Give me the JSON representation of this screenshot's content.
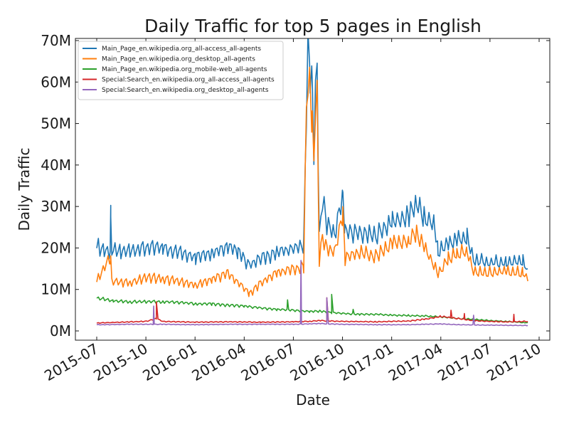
{
  "chart_data": {
    "type": "line",
    "title": "Daily Traffic for top 5 pages in English",
    "xlabel": "Date",
    "ylabel": "Daily Traffic",
    "xlim": [
      "2015-07-01",
      "2017-10-01"
    ],
    "ylim": [
      0,
      70000000
    ],
    "x_ticks": [
      "2015-07",
      "2015-10",
      "2016-01",
      "2016-04",
      "2016-07",
      "2016-10",
      "2017-01",
      "2017-04",
      "2017-07",
      "2017-10"
    ],
    "y_ticks": [
      "0M",
      "10M",
      "20M",
      "30M",
      "40M",
      "50M",
      "60M",
      "70M"
    ],
    "grid": false,
    "legend_position": "top-left",
    "series": [
      {
        "name": "Main_Page_en.wikipedia.org_all-access_all-agents",
        "color": "#1f77b4",
        "points": [
          [
            "2015-07-01",
            20500000
          ],
          [
            "2015-07-15",
            19500000
          ],
          [
            "2015-07-26",
            19000000
          ],
          [
            "2015-07-27",
            27500000
          ],
          [
            "2015-07-29",
            19500000
          ],
          [
            "2015-08-15",
            19000000
          ],
          [
            "2015-09-01",
            19500000
          ],
          [
            "2015-10-01",
            20000000
          ],
          [
            "2015-11-01",
            20000000
          ],
          [
            "2015-12-01",
            19000000
          ],
          [
            "2016-01-01",
            18000000
          ],
          [
            "2016-02-01",
            19000000
          ],
          [
            "2016-03-01",
            20500000
          ],
          [
            "2016-03-20",
            19000000
          ],
          [
            "2016-04-10",
            16000000
          ],
          [
            "2016-05-01",
            17500000
          ],
          [
            "2016-06-01",
            19000000
          ],
          [
            "2016-07-01",
            20000000
          ],
          [
            "2016-07-20",
            20500000
          ],
          [
            "2016-07-25",
            53000000
          ],
          [
            "2016-07-28",
            67000000
          ],
          [
            "2016-08-01",
            63000000
          ],
          [
            "2016-08-05",
            58000000
          ],
          [
            "2016-08-08",
            43000000
          ],
          [
            "2016-08-11",
            58000000
          ],
          [
            "2016-08-14",
            62500000
          ],
          [
            "2016-08-16",
            42000000
          ],
          [
            "2016-08-18",
            22000000
          ],
          [
            "2016-08-24",
            32000000
          ],
          [
            "2016-09-01",
            26000000
          ],
          [
            "2016-09-15",
            23000000
          ],
          [
            "2016-10-01",
            33000000
          ],
          [
            "2016-10-05",
            24000000
          ],
          [
            "2016-11-01",
            23500000
          ],
          [
            "2016-12-01",
            23000000
          ],
          [
            "2017-01-01",
            26500000
          ],
          [
            "2017-02-01",
            27500000
          ],
          [
            "2017-02-15",
            31000000
          ],
          [
            "2017-03-01",
            27000000
          ],
          [
            "2017-03-20",
            26000000
          ],
          [
            "2017-03-27",
            19000000
          ],
          [
            "2017-04-15",
            21000000
          ],
          [
            "2017-05-01",
            22000000
          ],
          [
            "2017-05-20",
            22500000
          ],
          [
            "2017-06-01",
            17000000
          ],
          [
            "2017-07-01",
            16500000
          ],
          [
            "2017-08-01",
            16500000
          ],
          [
            "2017-09-01",
            17000000
          ],
          [
            "2017-09-10",
            15000000
          ]
        ]
      },
      {
        "name": "Main_Page_en.wikipedia.org_desktop_all-agents",
        "color": "#ff7f0e",
        "points": [
          [
            "2015-07-01",
            12000000
          ],
          [
            "2015-07-27",
            18000000
          ],
          [
            "2015-07-29",
            12000000
          ],
          [
            "2015-09-01",
            11500000
          ],
          [
            "2015-10-01",
            13000000
          ],
          [
            "2015-11-01",
            12500000
          ],
          [
            "2015-12-01",
            12000000
          ],
          [
            "2016-01-01",
            11000000
          ],
          [
            "2016-02-01",
            12500000
          ],
          [
            "2016-03-01",
            14000000
          ],
          [
            "2016-04-10",
            9000000
          ],
          [
            "2016-05-01",
            11500000
          ],
          [
            "2016-06-01",
            14000000
          ],
          [
            "2016-07-20",
            15500000
          ],
          [
            "2016-07-25",
            54000000
          ],
          [
            "2016-07-28",
            62000000
          ],
          [
            "2016-08-01",
            59000000
          ],
          [
            "2016-08-05",
            51000000
          ],
          [
            "2016-08-08",
            41000000
          ],
          [
            "2016-08-11",
            55000000
          ],
          [
            "2016-08-14",
            58000000
          ],
          [
            "2016-08-16",
            35000000
          ],
          [
            "2016-08-18",
            17000000
          ],
          [
            "2016-08-24",
            23000000
          ],
          [
            "2016-09-01",
            20000000
          ],
          [
            "2016-09-15",
            19000000
          ],
          [
            "2016-10-01",
            28500000
          ],
          [
            "2016-10-05",
            17500000
          ],
          [
            "2016-11-01",
            19000000
          ],
          [
            "2016-12-01",
            18000000
          ],
          [
            "2017-01-01",
            21000000
          ],
          [
            "2017-02-01",
            21500000
          ],
          [
            "2017-02-15",
            24000000
          ],
          [
            "2017-03-01",
            20500000
          ],
          [
            "2017-03-27",
            13500000
          ],
          [
            "2017-04-15",
            17500000
          ],
          [
            "2017-05-01",
            18500000
          ],
          [
            "2017-05-20",
            19000000
          ],
          [
            "2017-06-01",
            14500000
          ],
          [
            "2017-07-01",
            14000000
          ],
          [
            "2017-08-01",
            14500000
          ],
          [
            "2017-09-01",
            14000000
          ],
          [
            "2017-09-10",
            12000000
          ]
        ]
      },
      {
        "name": "Main_Page_en.wikipedia.org_mobile-web_all-agents",
        "color": "#2ca02c",
        "points": [
          [
            "2015-07-01",
            8000000
          ],
          [
            "2015-08-01",
            7200000
          ],
          [
            "2015-09-01",
            7000000
          ],
          [
            "2015-10-01",
            7100000
          ],
          [
            "2015-11-01",
            7000000
          ],
          [
            "2015-12-01",
            6900000
          ],
          [
            "2016-01-01",
            6500000
          ],
          [
            "2016-02-01",
            6500000
          ],
          [
            "2016-03-01",
            6200000
          ],
          [
            "2016-04-01",
            6000000
          ],
          [
            "2016-05-01",
            5500000
          ],
          [
            "2016-06-01",
            5200000
          ],
          [
            "2016-07-01",
            5000000
          ],
          [
            "2016-08-01",
            4700000
          ],
          [
            "2016-08-20",
            4800000
          ],
          [
            "2016-09-01",
            4500000
          ],
          [
            "2016-10-01",
            4200000
          ],
          [
            "2016-11-01",
            4000000
          ],
          [
            "2016-12-01",
            4000000
          ],
          [
            "2017-01-01",
            3800000
          ],
          [
            "2017-02-01",
            3700000
          ],
          [
            "2017-03-01",
            3600000
          ],
          [
            "2017-04-01",
            3400000
          ],
          [
            "2017-05-01",
            3000000
          ],
          [
            "2017-06-01",
            2800000
          ],
          [
            "2017-07-01",
            2500000
          ],
          [
            "2017-08-01",
            2300000
          ],
          [
            "2017-09-01",
            2000000
          ],
          [
            "2017-09-10",
            2000000
          ]
        ]
      },
      {
        "name": "Special:Search_en.wikipedia.org_all-access_all-agents",
        "color": "#d62728",
        "points": [
          [
            "2015-07-01",
            1900000
          ],
          [
            "2015-09-01",
            2200000
          ],
          [
            "2015-10-01",
            2300000
          ],
          [
            "2015-10-20",
            3000000
          ],
          [
            "2015-11-01",
            2300000
          ],
          [
            "2015-12-01",
            2200000
          ],
          [
            "2016-01-01",
            2100000
          ],
          [
            "2016-03-01",
            2200000
          ],
          [
            "2016-05-01",
            2100000
          ],
          [
            "2016-07-01",
            2200000
          ],
          [
            "2016-08-01",
            2300000
          ],
          [
            "2016-08-20",
            2500000
          ],
          [
            "2016-09-01",
            2400000
          ],
          [
            "2016-10-01",
            2300000
          ],
          [
            "2016-12-01",
            2200000
          ],
          [
            "2017-02-01",
            2400000
          ],
          [
            "2017-03-01",
            2800000
          ],
          [
            "2017-04-01",
            3500000
          ],
          [
            "2017-05-01",
            3000000
          ],
          [
            "2017-06-01",
            2500000
          ],
          [
            "2017-07-01",
            2300000
          ],
          [
            "2017-08-01",
            2200000
          ],
          [
            "2017-09-10",
            2300000
          ]
        ]
      },
      {
        "name": "Special:Search_en.wikipedia.org_desktop_all-agents",
        "color": "#9467bd",
        "points": [
          [
            "2015-07-01",
            1500000
          ],
          [
            "2015-09-01",
            1600000
          ],
          [
            "2015-10-01",
            1600000
          ],
          [
            "2015-11-01",
            1600000
          ],
          [
            "2016-01-01",
            1500000
          ],
          [
            "2016-03-01",
            1600000
          ],
          [
            "2016-05-01",
            1600000
          ],
          [
            "2016-07-01",
            1600000
          ],
          [
            "2016-08-01",
            1700000
          ],
          [
            "2016-08-20",
            1800000
          ],
          [
            "2016-09-01",
            1700000
          ],
          [
            "2016-10-01",
            1600000
          ],
          [
            "2016-12-01",
            1500000
          ],
          [
            "2017-02-01",
            1500000
          ],
          [
            "2017-03-01",
            1600000
          ],
          [
            "2017-04-01",
            1700000
          ],
          [
            "2017-05-01",
            1500000
          ],
          [
            "2017-07-01",
            1400000
          ],
          [
            "2017-09-10",
            1300000
          ]
        ]
      }
    ],
    "spikes": [
      {
        "series": 0,
        "date": "2015-07-27",
        "value": 27500000
      },
      {
        "series": 0,
        "date": "2016-10-01",
        "value": 33500000
      },
      {
        "series": 1,
        "date": "2015-07-27",
        "value": 18000000
      },
      {
        "series": 2,
        "date": "2016-06-20",
        "value": 7500000
      },
      {
        "series": 2,
        "date": "2016-09-10",
        "value": 8800000
      },
      {
        "series": 2,
        "date": "2016-10-20",
        "value": 5200000
      },
      {
        "series": 3,
        "date": "2015-10-20",
        "value": 7000000
      },
      {
        "series": 3,
        "date": "2016-09-01",
        "value": 8000000
      },
      {
        "series": 3,
        "date": "2017-04-20",
        "value": 5000000
      },
      {
        "series": 3,
        "date": "2017-05-15",
        "value": 4200000
      },
      {
        "series": 3,
        "date": "2017-08-15",
        "value": 4000000
      },
      {
        "series": 4,
        "date": "2015-10-15",
        "value": 6000000
      },
      {
        "series": 4,
        "date": "2016-07-15",
        "value": 17000000
      },
      {
        "series": 4,
        "date": "2016-09-01",
        "value": 8000000
      },
      {
        "series": 4,
        "date": "2017-06-01",
        "value": 3800000
      }
    ]
  }
}
